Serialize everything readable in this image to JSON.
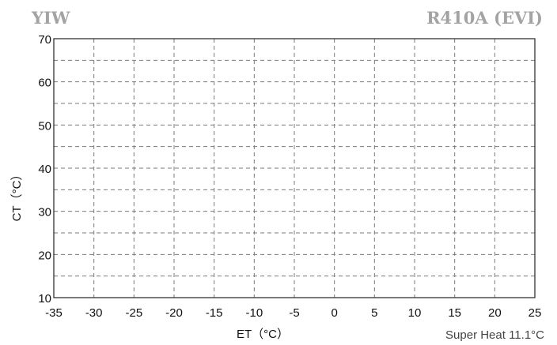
{
  "header": {
    "left": "YIW",
    "right": "R410A (EVI)"
  },
  "chart_data": {
    "type": "scatter",
    "title": "",
    "xlabel": "ET（°C）",
    "ylabel": "CT（°C）",
    "xlim": [
      -35,
      25
    ],
    "ylim": [
      10,
      70
    ],
    "xticks": [
      -35,
      -30,
      -25,
      -20,
      -15,
      -10,
      -5,
      0,
      5,
      10,
      15,
      20,
      25
    ],
    "yticks": [
      10,
      20,
      30,
      40,
      50,
      60,
      70
    ],
    "grid": true,
    "grid_minor_y": [
      15,
      25,
      35,
      45,
      55,
      65
    ],
    "grid_style": "dashed",
    "series": [],
    "annotation": "Super Heat 11.1°C"
  }
}
